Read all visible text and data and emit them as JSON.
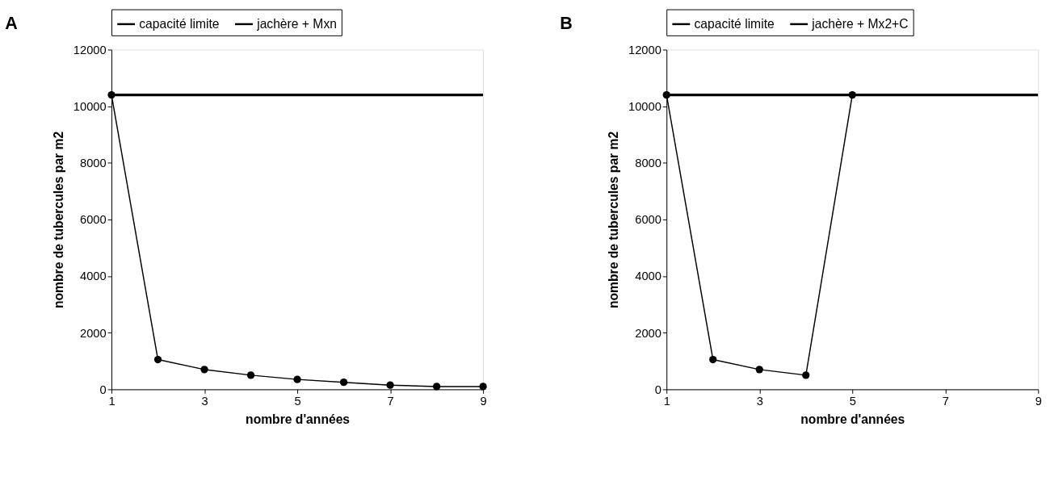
{
  "chart_data": [
    {
      "type": "line",
      "title": "A",
      "xlabel": "nombre d'années",
      "ylabel": "nombre de tubercules par m2",
      "x": [
        1,
        2,
        3,
        4,
        5,
        6,
        7,
        8,
        9
      ],
      "xlim": [
        1,
        9
      ],
      "xticks": [
        1,
        3,
        5,
        7,
        9
      ],
      "ylim": [
        0,
        12000
      ],
      "yticks": [
        0,
        2000,
        4000,
        6000,
        8000,
        10000,
        12000
      ],
      "grid": false,
      "legend": "top",
      "series": [
        {
          "name": "capacité limite",
          "color": "#000000",
          "marker": "none",
          "values": [
            10400,
            10400,
            10400,
            10400,
            10400,
            10400,
            10400,
            10400,
            10400
          ]
        },
        {
          "name": "jachère + Mxn",
          "color": "#000000",
          "marker": "circle",
          "values": [
            10400,
            1050,
            700,
            500,
            350,
            250,
            150,
            100,
            100
          ]
        }
      ]
    },
    {
      "type": "line",
      "title": "B",
      "xlabel": "nombre d'années",
      "ylabel": "nombre de tubercules par m2",
      "x": [
        1,
        2,
        3,
        4,
        5,
        6,
        7,
        8,
        9
      ],
      "xlim": [
        1,
        9
      ],
      "xticks": [
        1,
        3,
        5,
        7,
        9
      ],
      "ylim": [
        0,
        12000
      ],
      "yticks": [
        0,
        2000,
        4000,
        6000,
        8000,
        10000,
        12000
      ],
      "grid": false,
      "legend": "top",
      "series": [
        {
          "name": "capacité limite",
          "color": "#000000",
          "marker": "none",
          "values": [
            10400,
            10400,
            10400,
            10400,
            10400,
            10400,
            10400,
            10400,
            10400
          ]
        },
        {
          "name": "jachère + Mx2+C",
          "color": "#000000",
          "marker": "circle",
          "values": [
            10400,
            1050,
            700,
            500,
            10400,
            null,
            null,
            null,
            null
          ]
        }
      ]
    }
  ]
}
